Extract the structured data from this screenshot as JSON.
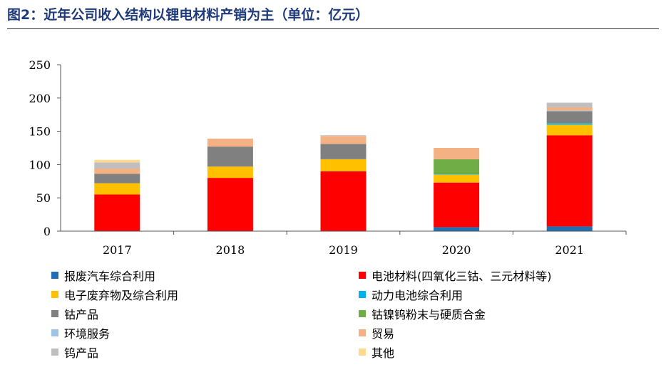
{
  "title": "图2：近年公司收入结构以锂电材料产销为主（单位：亿元）",
  "chart_data": {
    "type": "bar",
    "stacked": true,
    "categories": [
      "2017",
      "2018",
      "2019",
      "2020",
      "2021"
    ],
    "ylim": [
      0,
      250
    ],
    "yticks": [
      0,
      50,
      100,
      150,
      200,
      250
    ],
    "grid": false,
    "legend_position": "bottom",
    "series": [
      {
        "name": "报废汽车综合利用",
        "color": "#1F6FB4",
        "values": [
          0,
          0,
          0,
          6,
          7
        ]
      },
      {
        "name": "电池材料(四氧化三钴、三元材料等)",
        "color": "#FF0000",
        "values": [
          55,
          80,
          90,
          67,
          137
        ]
      },
      {
        "name": "电子废弃物及综合利用",
        "color": "#FFC000",
        "values": [
          17,
          17,
          18,
          12,
          16
        ]
      },
      {
        "name": "动力电池综合利用",
        "color": "#00B0F0",
        "values": [
          0,
          0,
          0,
          1,
          2
        ]
      },
      {
        "name": "钴产品",
        "color": "#808080",
        "values": [
          14,
          30,
          23,
          0,
          18
        ]
      },
      {
        "name": "钴镍钨粉末与硬质合金",
        "color": "#70AD47",
        "values": [
          0,
          0,
          0,
          22,
          0
        ]
      },
      {
        "name": "环境服务",
        "color": "#9DC3E6",
        "values": [
          0,
          0,
          0,
          0,
          1
        ]
      },
      {
        "name": "贸易",
        "color": "#F4B183",
        "values": [
          8,
          12,
          12,
          17,
          5
        ]
      },
      {
        "name": "钨产品",
        "color": "#BFBFBF",
        "values": [
          9,
          0,
          1,
          0,
          7
        ]
      },
      {
        "name": "其他",
        "color": "#FFD98C",
        "values": [
          4,
          0,
          0,
          0,
          0
        ]
      }
    ]
  }
}
